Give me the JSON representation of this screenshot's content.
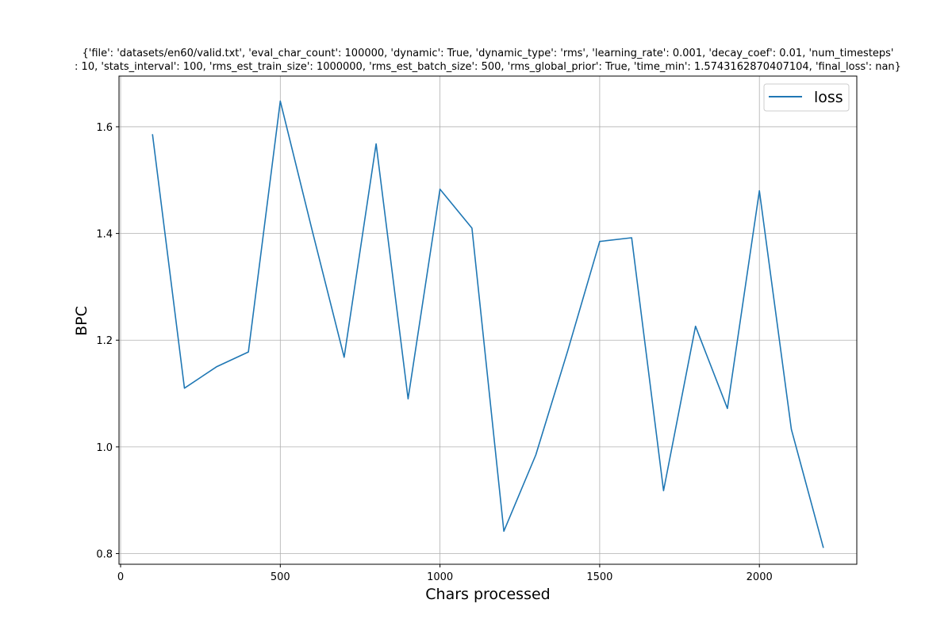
{
  "chart_data": {
    "type": "line",
    "title_lines": [
      "{'file': 'datasets/en60/valid.txt', 'eval_char_count': 100000, 'dynamic': True, 'dynamic_type': 'rms', 'learning_rate': 0.001, 'decay_coef': 0.01, 'num_timesteps'",
      ": 10, 'stats_interval': 100, 'rms_est_train_size': 1000000, 'rms_est_batch_size': 500, 'rms_global_prior': True, 'time_min': 1.5743162870407104, 'final_loss': nan}"
    ],
    "xlabel": "Chars processed",
    "ylabel": "BPC",
    "xlim": [
      -5,
      2305
    ],
    "ylim": [
      0.78,
      1.695
    ],
    "xticks": [
      0,
      500,
      1000,
      1500,
      2000
    ],
    "xtick_labels": [
      "0",
      "500",
      "1000",
      "1500",
      "2000"
    ],
    "yticks": [
      0.8,
      1.0,
      1.2,
      1.4,
      1.6
    ],
    "ytick_labels": [
      "0.8",
      "1.0",
      "1.2",
      "1.4",
      "1.6"
    ],
    "grid": true,
    "legend_position": "top-right",
    "series": [
      {
        "name": "loss",
        "color": "#1f77b4",
        "x": [
          100,
          200,
          300,
          400,
          500,
          600,
          700,
          800,
          900,
          1000,
          1100,
          1200,
          1300,
          1400,
          1500,
          1600,
          1700,
          1800,
          1900,
          2000,
          2100,
          2200
        ],
        "y": [
          1.585,
          1.11,
          1.15,
          1.178,
          1.648,
          1.405,
          1.168,
          1.568,
          1.09,
          1.483,
          1.41,
          0.842,
          0.985,
          1.18,
          1.385,
          1.392,
          0.918,
          1.226,
          1.072,
          1.48,
          1.033,
          0.812
        ]
      }
    ]
  }
}
